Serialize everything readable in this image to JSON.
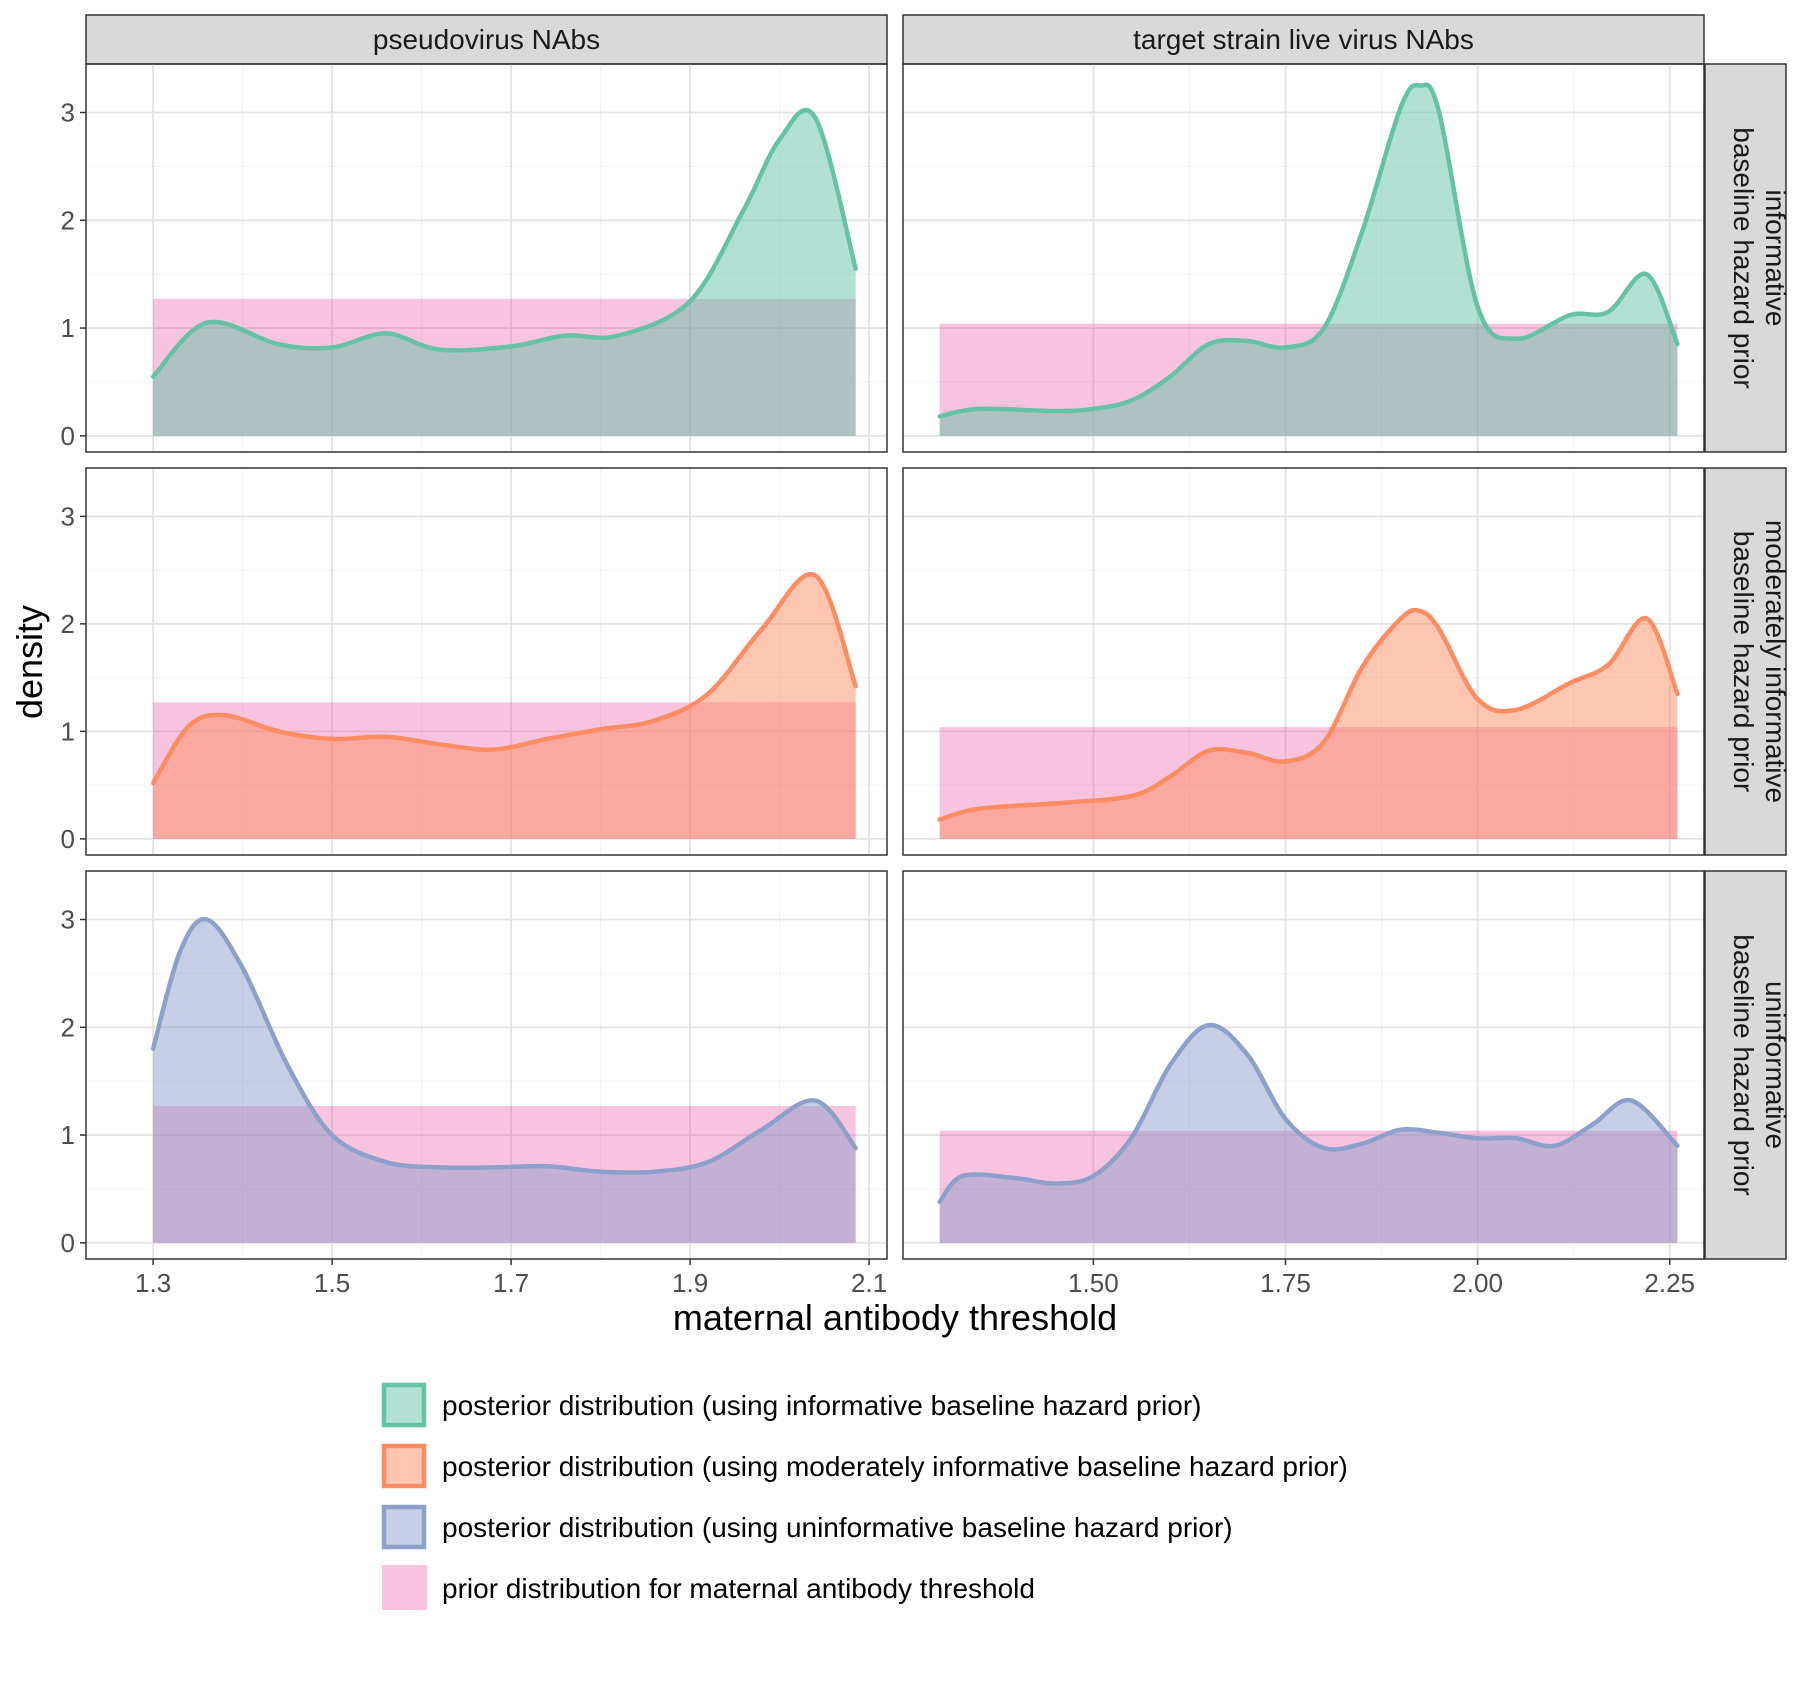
{
  "chart_data": {
    "type": "area",
    "xlabel": "maternal antibody threshold",
    "ylabel": "density",
    "ylim": [
      -0.15,
      3.45
    ],
    "yticks": [
      0,
      1,
      2,
      3
    ],
    "yticklabels": [
      "0",
      "1",
      "2",
      "3"
    ],
    "grid": true,
    "colors": {
      "informative": "#66c2a5",
      "moderate": "#fc8d62",
      "uninformative": "#8da0cb",
      "prior": "#e7298a"
    },
    "columns": [
      {
        "label": "pseudovirus NAbs",
        "xlim": [
          1.225,
          2.12
        ],
        "xticks": [
          1.3,
          1.5,
          1.7,
          1.9,
          2.1
        ],
        "xticklabels": [
          "1.3",
          "1.5",
          "1.7",
          "1.9",
          "2.1"
        ],
        "prior": {
          "xmin": 1.3,
          "xmax": 2.085,
          "density": 1.27
        }
      },
      {
        "label": "target strain live virus NAbs",
        "xlim": [
          1.2523,
          2.2946
        ],
        "xticks": [
          1.5,
          1.75,
          2.0,
          2.25
        ],
        "xticklabels": [
          "1.50",
          "1.75",
          "2.00",
          "2.25"
        ],
        "prior": {
          "xmin": 1.3,
          "xmax": 2.26,
          "density": 1.04
        }
      }
    ],
    "rows": [
      {
        "label_lines": [
          "informative",
          "baseline hazard prior"
        ],
        "series_key": "informative"
      },
      {
        "label_lines": [
          "moderately informative",
          "baseline hazard prior"
        ],
        "series_key": "moderate"
      },
      {
        "label_lines": [
          "uninformative",
          "baseline hazard prior"
        ],
        "series_key": "uninformative"
      }
    ],
    "series": [
      {
        "name": "informative",
        "column": 0,
        "x": [
          1.3,
          1.36,
          1.44,
          1.5,
          1.56,
          1.62,
          1.7,
          1.76,
          1.82,
          1.9,
          1.96,
          2.0,
          2.04,
          2.085
        ],
        "y": [
          0.55,
          1.05,
          0.85,
          0.82,
          0.95,
          0.8,
          0.83,
          0.93,
          0.93,
          1.25,
          2.1,
          2.75,
          2.95,
          1.55
        ]
      },
      {
        "name": "informative",
        "column": 1,
        "x": [
          1.3,
          1.35,
          1.45,
          1.5,
          1.55,
          1.6,
          1.65,
          1.7,
          1.75,
          1.8,
          1.85,
          1.9,
          1.925,
          1.95,
          2.0,
          2.05,
          2.12,
          2.17,
          2.22,
          2.26
        ],
        "y": [
          0.18,
          0.25,
          0.23,
          0.25,
          0.33,
          0.55,
          0.85,
          0.88,
          0.82,
          1.0,
          1.9,
          3.05,
          3.25,
          3.0,
          1.2,
          0.9,
          1.12,
          1.15,
          1.5,
          0.85
        ]
      },
      {
        "name": "moderate",
        "column": 0,
        "x": [
          1.3,
          1.34,
          1.38,
          1.44,
          1.5,
          1.56,
          1.62,
          1.68,
          1.74,
          1.8,
          1.86,
          1.92,
          1.98,
          2.04,
          2.085
        ],
        "y": [
          0.52,
          1.05,
          1.15,
          1.0,
          0.93,
          0.95,
          0.88,
          0.83,
          0.93,
          1.02,
          1.1,
          1.35,
          1.95,
          2.45,
          1.42
        ]
      },
      {
        "name": "moderate",
        "column": 1,
        "x": [
          1.3,
          1.35,
          1.45,
          1.55,
          1.6,
          1.65,
          1.7,
          1.75,
          1.8,
          1.85,
          1.9,
          1.925,
          1.95,
          2.0,
          2.05,
          2.12,
          2.17,
          2.22,
          2.26
        ],
        "y": [
          0.18,
          0.28,
          0.33,
          0.4,
          0.58,
          0.82,
          0.8,
          0.72,
          0.9,
          1.6,
          2.05,
          2.12,
          1.95,
          1.3,
          1.2,
          1.45,
          1.62,
          2.05,
          1.35
        ]
      },
      {
        "name": "uninformative",
        "column": 0,
        "x": [
          1.3,
          1.33,
          1.36,
          1.4,
          1.45,
          1.5,
          1.56,
          1.62,
          1.68,
          1.74,
          1.8,
          1.86,
          1.92,
          1.98,
          2.04,
          2.085
        ],
        "y": [
          1.8,
          2.7,
          3.0,
          2.55,
          1.65,
          1.0,
          0.75,
          0.7,
          0.7,
          0.71,
          0.66,
          0.66,
          0.75,
          1.05,
          1.32,
          0.88
        ]
      },
      {
        "name": "uninformative",
        "column": 1,
        "x": [
          1.3,
          1.33,
          1.4,
          1.45,
          1.5,
          1.55,
          1.6,
          1.65,
          1.7,
          1.75,
          1.8,
          1.85,
          1.9,
          1.95,
          2.0,
          2.05,
          2.1,
          2.15,
          2.2,
          2.26
        ],
        "y": [
          0.38,
          0.62,
          0.6,
          0.55,
          0.62,
          0.98,
          1.65,
          2.02,
          1.75,
          1.15,
          0.88,
          0.92,
          1.05,
          1.02,
          0.97,
          0.97,
          0.9,
          1.1,
          1.32,
          0.9
        ]
      }
    ],
    "legend": {
      "position": "bottom",
      "entries": [
        {
          "key": "informative",
          "label": "posterior distribution (using informative baseline hazard prior)"
        },
        {
          "key": "moderate",
          "label": "posterior distribution (using moderately informative baseline hazard prior)"
        },
        {
          "key": "uninformative",
          "label": "posterior distribution (using uninformative baseline hazard prior)"
        },
        {
          "key": "prior",
          "label": "prior distribution for maternal antibody threshold"
        }
      ]
    }
  }
}
